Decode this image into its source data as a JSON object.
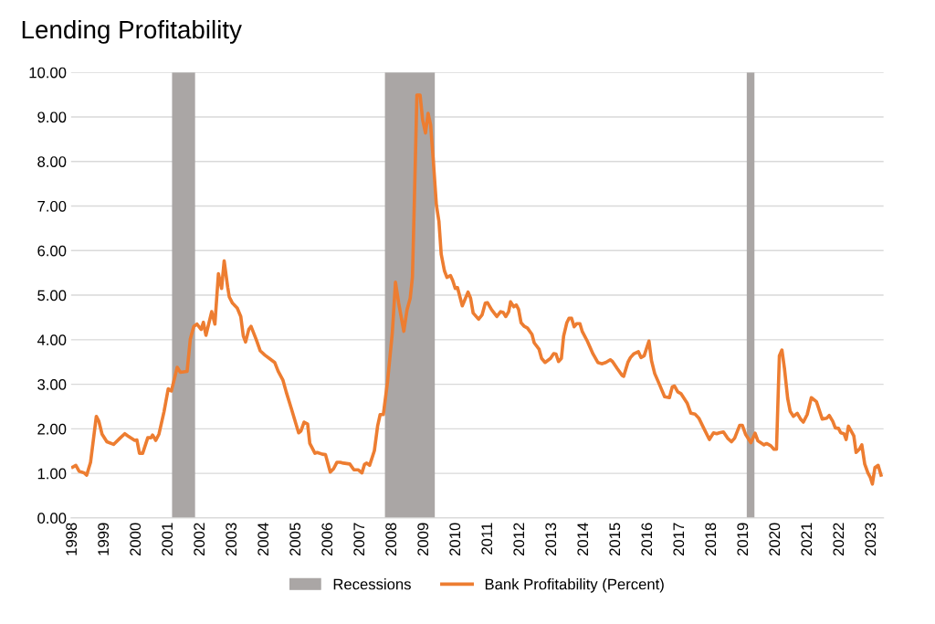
{
  "chart_data": {
    "type": "line",
    "title": "Lending Profitability",
    "x": [
      1998.0,
      1998.1,
      1998.2,
      1998.36,
      1998.44,
      1998.56,
      1998.74,
      1998.82,
      1998.92,
      1999.07,
      1999.28,
      1999.48,
      1999.63,
      1999.73,
      1999.94,
      2000.01,
      2000.09,
      2000.19,
      2000.35,
      2000.45,
      2000.5,
      2000.6,
      2000.7,
      2000.86,
      2000.99,
      2001.09,
      2001.27,
      2001.37,
      2001.58,
      2001.68,
      2001.79,
      2001.89,
      2002.02,
      2002.09,
      2002.17,
      2002.35,
      2002.45,
      2002.56,
      2002.66,
      2002.74,
      2002.85,
      2002.9,
      2003.0,
      2003.15,
      2003.26,
      2003.34,
      2003.41,
      2003.51,
      2003.58,
      2003.74,
      2003.87,
      2004.02,
      2004.17,
      2004.32,
      2004.43,
      2004.58,
      2004.68,
      2004.84,
      2004.99,
      2005.07,
      2005.14,
      2005.24,
      2005.35,
      2005.42,
      2005.58,
      2005.65,
      2005.81,
      2005.91,
      2006.06,
      2006.16,
      2006.27,
      2006.37,
      2006.47,
      2006.67,
      2006.8,
      2006.93,
      2007.05,
      2007.13,
      2007.2,
      2007.29,
      2007.44,
      2007.54,
      2007.62,
      2007.72,
      2007.85,
      2008.0,
      2008.1,
      2008.2,
      2008.36,
      2008.46,
      2008.56,
      2008.63,
      2008.69,
      2008.77,
      2008.87,
      2008.95,
      2009.04,
      2009.12,
      2009.2,
      2009.28,
      2009.38,
      2009.46,
      2009.53,
      2009.63,
      2009.71,
      2009.82,
      2009.89,
      2009.97,
      2010.04,
      2010.19,
      2010.37,
      2010.45,
      2010.53,
      2010.7,
      2010.81,
      2010.91,
      2010.98,
      2011.11,
      2011.27,
      2011.39,
      2011.47,
      2011.55,
      2011.64,
      2011.7,
      2011.8,
      2011.88,
      2011.95,
      2012.03,
      2012.13,
      2012.23,
      2012.37,
      2012.44,
      2012.59,
      2012.67,
      2012.78,
      2012.95,
      2013.05,
      2013.12,
      2013.2,
      2013.29,
      2013.36,
      2013.46,
      2013.53,
      2013.61,
      2013.69,
      2013.77,
      2013.87,
      2013.94,
      2014.1,
      2014.28,
      2014.43,
      2014.55,
      2014.68,
      2014.82,
      2014.89,
      2015.04,
      2015.19,
      2015.24,
      2015.37,
      2015.45,
      2015.55,
      2015.7,
      2015.78,
      2015.88,
      2016.03,
      2016.11,
      2016.21,
      2016.35,
      2016.52,
      2016.67,
      2016.76,
      2016.83,
      2016.93,
      2017.03,
      2017.23,
      2017.34,
      2017.47,
      2017.59,
      2017.74,
      2017.92,
      2018.05,
      2018.15,
      2018.23,
      2018.36,
      2018.49,
      2018.61,
      2018.71,
      2018.87,
      2018.95,
      2019.05,
      2019.22,
      2019.35,
      2019.44,
      2019.63,
      2019.71,
      2019.84,
      2019.94,
      2020.02,
      2020.11,
      2020.19,
      2020.27,
      2020.37,
      2020.45,
      2020.55,
      2020.67,
      2020.78,
      2020.86,
      2020.98,
      2021.11,
      2021.27,
      2021.45,
      2021.59,
      2021.67,
      2021.78,
      2021.86,
      2021.96,
      2022.03,
      2022.13,
      2022.2,
      2022.27,
      2022.44,
      2022.51,
      2022.61,
      2022.69,
      2022.78,
      2022.88,
      2022.95,
      2023.02,
      2023.1,
      2023.2,
      2023.29
    ],
    "series": [
      {
        "name": "Bank Profitability (Percent)",
        "color": "#ed7d31",
        "values": [
          1.14,
          1.18,
          1.05,
          1.01,
          0.96,
          1.25,
          2.28,
          2.17,
          1.88,
          1.71,
          1.65,
          1.79,
          1.89,
          1.84,
          1.74,
          1.75,
          1.45,
          1.45,
          1.8,
          1.8,
          1.86,
          1.74,
          1.88,
          2.39,
          2.9,
          2.85,
          3.38,
          3.27,
          3.29,
          4.01,
          4.3,
          4.35,
          4.23,
          4.39,
          4.1,
          4.63,
          4.35,
          5.48,
          5.15,
          5.77,
          5.18,
          4.96,
          4.82,
          4.71,
          4.52,
          4.08,
          3.95,
          4.23,
          4.3,
          4.01,
          3.75,
          3.65,
          3.57,
          3.49,
          3.29,
          3.09,
          2.83,
          2.46,
          2.1,
          1.91,
          1.95,
          2.15,
          2.11,
          1.67,
          1.45,
          1.47,
          1.43,
          1.42,
          1.03,
          1.1,
          1.25,
          1.25,
          1.23,
          1.21,
          1.08,
          1.08,
          1.01,
          1.2,
          1.23,
          1.18,
          1.51,
          2.06,
          2.32,
          2.32,
          3.05,
          4.15,
          5.29,
          4.82,
          4.19,
          4.67,
          4.93,
          5.4,
          7.1,
          9.49,
          9.49,
          8.93,
          8.64,
          9.08,
          8.82,
          8.05,
          7.02,
          6.65,
          5.92,
          5.55,
          5.4,
          5.44,
          5.33,
          5.15,
          5.17,
          4.76,
          5.07,
          4.93,
          4.6,
          4.46,
          4.56,
          4.82,
          4.83,
          4.67,
          4.52,
          4.63,
          4.61,
          4.52,
          4.63,
          4.85,
          4.74,
          4.78,
          4.68,
          4.38,
          4.3,
          4.26,
          4.12,
          3.93,
          3.79,
          3.58,
          3.49,
          3.58,
          3.69,
          3.68,
          3.51,
          3.58,
          4.08,
          4.38,
          4.48,
          4.48,
          4.29,
          4.36,
          4.36,
          4.19,
          3.97,
          3.68,
          3.49,
          3.46,
          3.49,
          3.55,
          3.51,
          3.35,
          3.2,
          3.18,
          3.49,
          3.6,
          3.68,
          3.73,
          3.6,
          3.64,
          3.97,
          3.53,
          3.24,
          3.01,
          2.72,
          2.7,
          2.94,
          2.96,
          2.83,
          2.79,
          2.57,
          2.35,
          2.33,
          2.24,
          2.02,
          1.76,
          1.91,
          1.89,
          1.91,
          1.93,
          1.79,
          1.71,
          1.79,
          2.08,
          2.08,
          1.88,
          1.69,
          1.9,
          1.73,
          1.64,
          1.67,
          1.62,
          1.54,
          1.54,
          3.64,
          3.77,
          3.35,
          2.68,
          2.39,
          2.28,
          2.35,
          2.21,
          2.15,
          2.32,
          2.7,
          2.61,
          2.22,
          2.24,
          2.3,
          2.17,
          2.02,
          2.01,
          1.91,
          1.89,
          1.76,
          2.06,
          1.84,
          1.47,
          1.54,
          1.64,
          1.21,
          1.01,
          0.92,
          0.76,
          1.13,
          1.18,
          0.96
        ]
      }
    ],
    "bands": [
      {
        "axis": "x",
        "from": 2001.11,
        "to": 2001.83,
        "label": "Recessions",
        "color": "#aaa6a5"
      },
      {
        "axis": "x",
        "from": 2007.77,
        "to": 2009.33,
        "color": "#aaa6a5"
      },
      {
        "axis": "x",
        "from": 2019.09,
        "to": 2019.33,
        "color": "#aaa6a5"
      }
    ],
    "xlim": [
      1997.95,
      2023.37
    ],
    "xticks": [
      1998,
      1999,
      2000,
      2001,
      2002,
      2003,
      2004,
      2005,
      2006,
      2007,
      2008,
      2009,
      2010,
      2011,
      2012,
      2013,
      2014,
      2015,
      2016,
      2017,
      2018,
      2019,
      2020,
      2021,
      2022,
      2023
    ],
    "ylim": [
      0,
      10
    ],
    "yticks": [
      {
        "value": 0,
        "label": "0.00"
      },
      {
        "value": 1,
        "label": "1.00"
      },
      {
        "value": 2,
        "label": "2.00"
      },
      {
        "value": 3,
        "label": "3.00"
      },
      {
        "value": 4,
        "label": "4.00"
      },
      {
        "value": 5,
        "label": "5.00"
      },
      {
        "value": 6,
        "label": "6.00"
      },
      {
        "value": 7,
        "label": "7.00"
      },
      {
        "value": 8,
        "label": "8.00"
      },
      {
        "value": 9,
        "label": "9.00"
      },
      {
        "value": 10,
        "label": "10.00"
      }
    ],
    "grid": "y",
    "legend": "bottom",
    "line_style": "solid",
    "marker": "none"
  }
}
